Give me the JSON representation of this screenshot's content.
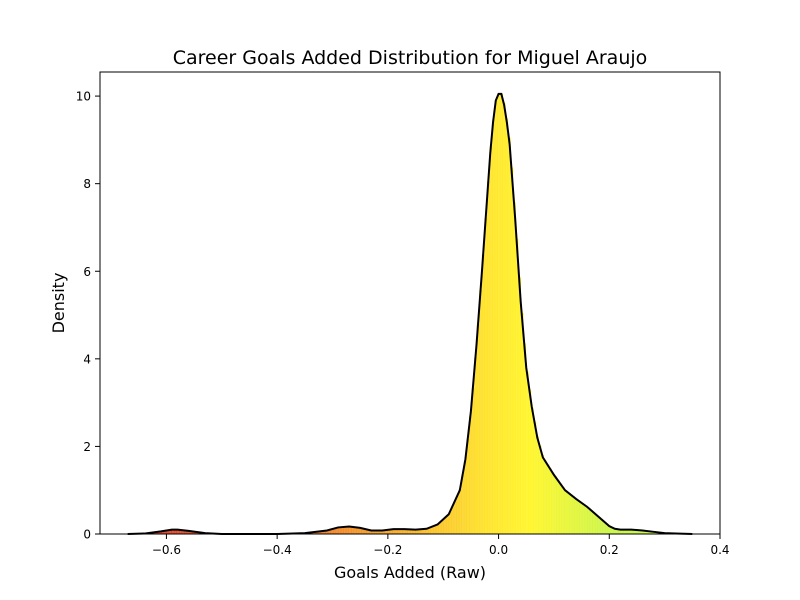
{
  "chart_data": {
    "type": "area",
    "title": "Career Goals Added Distribution for Miguel Araujo",
    "xlabel": "Goals Added (Raw)",
    "ylabel": "Density",
    "xlim": [
      -0.72,
      0.4
    ],
    "ylim": [
      0,
      10.55
    ],
    "xticks": [
      -0.6,
      -0.4,
      -0.2,
      0.0,
      0.2,
      0.4
    ],
    "xtick_labels": [
      "−0.6",
      "−0.4",
      "−0.2",
      "0.0",
      "0.2",
      "0.4"
    ],
    "yticks": [
      0,
      2,
      4,
      6,
      8,
      10
    ],
    "ytick_labels": [
      "0",
      "2",
      "4",
      "6",
      "8",
      "10"
    ],
    "grid": false,
    "line_color": "#000000",
    "fill_colormap": [
      "#d62a1a",
      "#f07d18",
      "#ffe21a",
      "#fff51a",
      "#c6f53a"
    ],
    "series": [
      {
        "x": [
          -0.67,
          -0.64,
          -0.61,
          -0.59,
          -0.58,
          -0.56,
          -0.53,
          -0.5,
          -0.45,
          -0.4,
          -0.35,
          -0.31,
          -0.29,
          -0.27,
          -0.25,
          -0.23,
          -0.21,
          -0.19,
          -0.17,
          -0.15,
          -0.13,
          -0.11,
          -0.09,
          -0.07,
          -0.06,
          -0.05,
          -0.04,
          -0.03,
          -0.02,
          -0.015,
          -0.01,
          -0.005,
          0.0,
          0.005,
          0.01,
          0.015,
          0.02,
          0.03,
          0.04,
          0.05,
          0.06,
          0.07,
          0.08,
          0.1,
          0.12,
          0.14,
          0.16,
          0.18,
          0.2,
          0.21,
          0.22,
          0.24,
          0.26,
          0.28,
          0.3,
          0.32,
          0.35
        ],
        "y": [
          0.0,
          0.01,
          0.06,
          0.1,
          0.1,
          0.07,
          0.02,
          0.0,
          0.0,
          0.0,
          0.02,
          0.08,
          0.15,
          0.17,
          0.14,
          0.08,
          0.08,
          0.11,
          0.11,
          0.1,
          0.12,
          0.22,
          0.45,
          1.0,
          1.7,
          2.8,
          4.3,
          6.0,
          7.8,
          8.7,
          9.4,
          9.9,
          10.05,
          10.05,
          9.8,
          9.4,
          8.9,
          7.2,
          5.3,
          3.8,
          2.9,
          2.2,
          1.75,
          1.35,
          1.0,
          0.8,
          0.62,
          0.4,
          0.18,
          0.12,
          0.1,
          0.1,
          0.08,
          0.05,
          0.02,
          0.01,
          0.0
        ]
      }
    ]
  }
}
